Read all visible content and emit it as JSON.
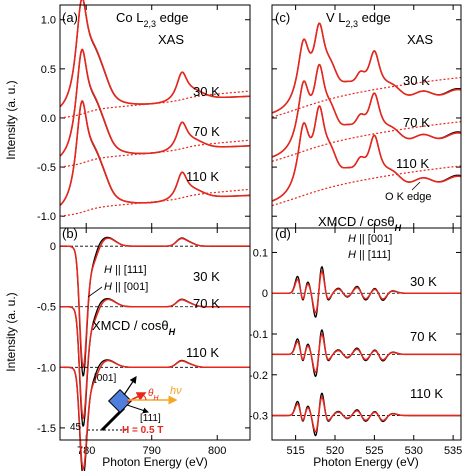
{
  "colors": {
    "red": "#e8261c",
    "black": "#000000",
    "orange": "#f5a623",
    "blue": "#3b6fd8",
    "inset_square": "#4f7fdc"
  },
  "chart_data": [
    {
      "id": "a",
      "type": "line",
      "panel_label": "(a)",
      "title_line1": "Co L",
      "title_sub": "2,3",
      "title_line1_tail": " edge",
      "title_line2": "XAS",
      "ylabel": "Intensity (a. u.)",
      "xlim": [
        776,
        805
      ],
      "ylim": [
        -1.12,
        1.15
      ],
      "xticks": [
        780,
        790,
        800
      ],
      "yticks": [
        -1.0,
        -0.5,
        0.0,
        0.5,
        1.0
      ],
      "ytick_labels": [
        "-1.0",
        "-0.5",
        "0.0",
        "0.5",
        "1.0"
      ],
      "temperature_labels": [
        "30 K",
        "70 K",
        "110 K"
      ],
      "offsets": [
        0,
        -0.5,
        -1.0
      ]
    },
    {
      "id": "b",
      "type": "line",
      "panel_label": "(b)",
      "ylabel": "Intensity (a. u.)",
      "xlabel": "Photon Energy (eV)",
      "xlim": [
        776,
        805
      ],
      "ylim": [
        -1.6,
        0.15
      ],
      "xticks": [
        780,
        790,
        800
      ],
      "xtick_labels": [
        "780",
        "790",
        "800"
      ],
      "yticks": [
        -1.5,
        -1.0,
        -0.5,
        0.0
      ],
      "ytick_labels": [
        "-1.5",
        "-1.0",
        "-0.5",
        "0"
      ],
      "temperature_labels": [
        "30 K",
        "70 K",
        "110 K"
      ],
      "offsets": [
        0,
        -0.5,
        -1.0
      ],
      "legend": [
        {
          "prefix": "H",
          "text": " || [111]",
          "color": "#e8261c"
        },
        {
          "prefix": "H",
          "text": " || [001]",
          "color": "#000000"
        }
      ],
      "label_xmcd": "XMCD / cosθ",
      "label_xmcd_sub": "H",
      "inset": {
        "dir_001": "[001]",
        "dir_111": "[111]",
        "theta": "θ",
        "theta_sub": "H",
        "hv": "hν",
        "field": "H = 0.5 T",
        "angle": "45°"
      }
    },
    {
      "id": "c",
      "type": "line",
      "panel_label": "(c)",
      "title_line1": "V L",
      "title_sub": "2,3",
      "title_line1_tail": " edge",
      "title_line2": "XAS",
      "xlim": [
        512,
        536
      ],
      "ylim": [
        -1.12,
        1.15
      ],
      "xticks": [
        515,
        520,
        525,
        530,
        535
      ],
      "yticks": [
        -1.0,
        -0.5,
        0.0,
        0.5,
        1.0
      ],
      "temperature_labels": [
        "30 K",
        "70 K",
        "110 K"
      ],
      "offsets": [
        0,
        -0.45,
        -0.9
      ],
      "annotation": "O K edge"
    },
    {
      "id": "d",
      "type": "line",
      "panel_label": "(d)",
      "xlabel": "Photon Energy (eV)",
      "xlim": [
        512,
        536
      ],
      "ylim": [
        -0.36,
        0.16
      ],
      "xticks": [
        515,
        520,
        525,
        530,
        535
      ],
      "xtick_labels": [
        "515",
        "520",
        "525",
        "530",
        "535"
      ],
      "yticks": [
        -0.3,
        -0.2,
        -0.1,
        0.0,
        0.1
      ],
      "ytick_labels": [
        "-0.3",
        "-0.2",
        "-0.1",
        "0",
        "0.1"
      ],
      "temperature_labels": [
        "30 K",
        "70 K",
        "110 K"
      ],
      "offsets": [
        0,
        -0.15,
        -0.3
      ],
      "legend": [
        {
          "prefix": "H",
          "text": " || [001]",
          "color": "#000000"
        },
        {
          "prefix": "H",
          "text": " || [111]",
          "color": "#e8261c"
        }
      ],
      "label_xmcd": "XMCD / cosθ",
      "label_xmcd_sub": "H"
    }
  ]
}
